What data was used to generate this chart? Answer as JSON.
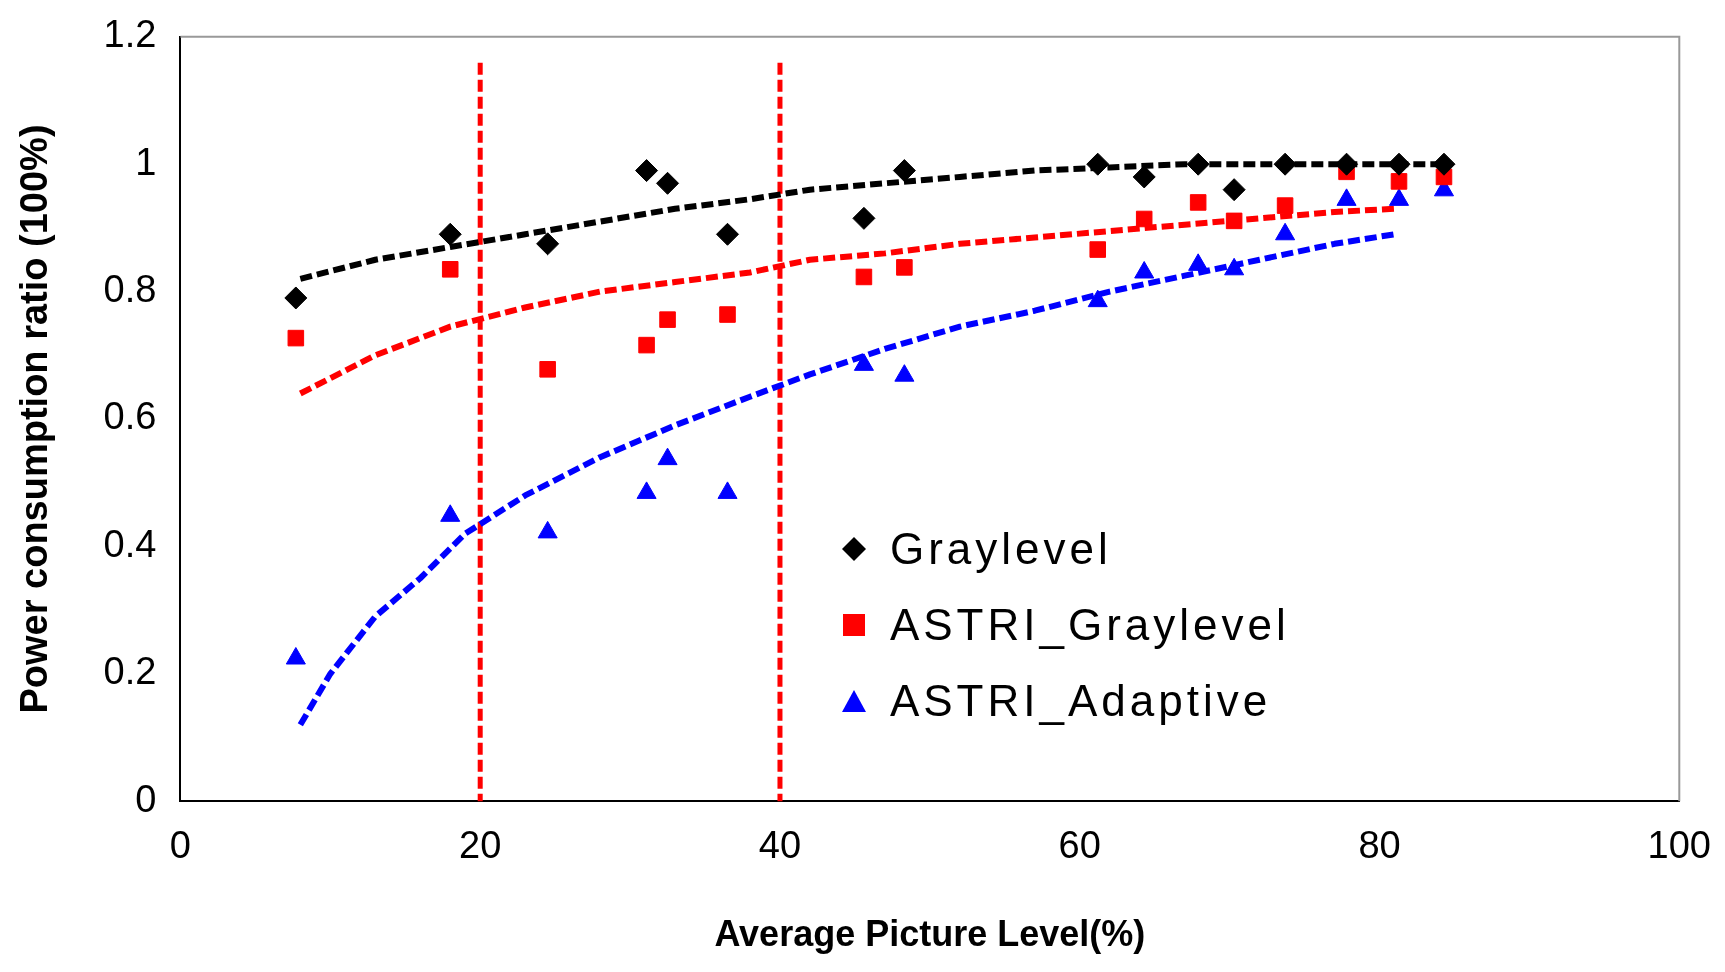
{
  "chart_data": {
    "type": "scatter",
    "xlabel": "Average Picture Level(%)",
    "ylabel": "Power consumption ratio (100%)",
    "xlim": [
      0,
      100
    ],
    "xticks": [
      0,
      20,
      40,
      60,
      80,
      100
    ],
    "ylim": [
      0,
      1.2
    ],
    "yticks": [
      0,
      0.2,
      0.4,
      0.6,
      0.8,
      1,
      1.2
    ],
    "grid": false,
    "legend": "right",
    "ref_lines": [
      {
        "axis": "x",
        "value": 20,
        "color": "#ff0000",
        "line_style": "dashed"
      },
      {
        "axis": "x",
        "value": 40,
        "color": "#ff0000",
        "line_style": "dashed"
      }
    ],
    "series": [
      {
        "name": "Graylevel",
        "color": "#000000",
        "marker": "diamond",
        "x": [
          7.7,
          18.0,
          24.5,
          31.1,
          32.5,
          36.5,
          45.6,
          48.3,
          61.2,
          64.3,
          67.9,
          70.3,
          73.7,
          77.8,
          81.3,
          84.3
        ],
        "values": [
          0.79,
          0.89,
          0.875,
          0.99,
          0.97,
          0.89,
          0.915,
          0.99,
          1.0,
          0.98,
          1.0,
          0.96,
          1.0,
          1.0,
          1.0,
          1.0
        ]
      },
      {
        "name": "ASTRI_Graylevel",
        "color": "#ff0000",
        "marker": "square",
        "x": [
          7.7,
          18.0,
          24.5,
          31.1,
          32.5,
          36.5,
          45.6,
          48.3,
          61.2,
          64.3,
          67.9,
          70.3,
          73.7,
          77.8,
          81.3,
          84.3
        ],
        "values": [
          0.727,
          0.835,
          0.678,
          0.716,
          0.756,
          0.764,
          0.823,
          0.838,
          0.866,
          0.914,
          0.94,
          0.911,
          0.935,
          0.988,
          0.973,
          0.98
        ]
      },
      {
        "name": "ASTRI_Adaptive",
        "color": "#0000ff",
        "marker": "triangle",
        "x": [
          7.7,
          18.0,
          24.5,
          31.1,
          32.5,
          36.5,
          45.6,
          48.3,
          61.2,
          64.3,
          67.9,
          70.3,
          73.7,
          77.8,
          81.3,
          84.3
        ],
        "values": [
          0.224,
          0.448,
          0.422,
          0.484,
          0.537,
          0.484,
          0.685,
          0.668,
          0.785,
          0.83,
          0.842,
          0.835,
          0.89,
          0.944,
          0.944,
          0.959
        ]
      },
      {
        "type": "line",
        "color": "#000000",
        "marker": "none",
        "line_style": "dashed",
        "x": [
          8,
          13,
          18,
          23,
          28,
          33,
          38,
          42,
          47,
          52,
          57,
          62,
          67,
          72,
          77,
          81,
          84
        ],
        "values": [
          0.82,
          0.85,
          0.87,
          0.89,
          0.91,
          0.93,
          0.945,
          0.96,
          0.97,
          0.98,
          0.99,
          0.995,
          1.0,
          1.0,
          1.0,
          1.0,
          1.0
        ]
      },
      {
        "type": "line",
        "color": "#ff0000",
        "marker": "none",
        "line_style": "dashed",
        "x": [
          8,
          13,
          18,
          23,
          28,
          33,
          38,
          42,
          47,
          52,
          57,
          62,
          67,
          72,
          77,
          81
        ],
        "values": [
          0.64,
          0.7,
          0.745,
          0.775,
          0.8,
          0.815,
          0.83,
          0.85,
          0.86,
          0.875,
          0.885,
          0.895,
          0.905,
          0.915,
          0.925,
          0.93
        ]
      },
      {
        "type": "line",
        "color": "#0000ff",
        "marker": "none",
        "line_style": "dashed",
        "x": [
          8,
          10,
          13,
          16,
          19,
          23,
          28,
          33,
          38,
          42,
          47,
          52,
          57,
          62,
          67,
          72,
          77,
          81
        ],
        "values": [
          0.12,
          0.2,
          0.29,
          0.35,
          0.42,
          0.48,
          0.54,
          0.59,
          0.635,
          0.67,
          0.71,
          0.745,
          0.77,
          0.8,
          0.825,
          0.85,
          0.875,
          0.89
        ]
      }
    ]
  }
}
